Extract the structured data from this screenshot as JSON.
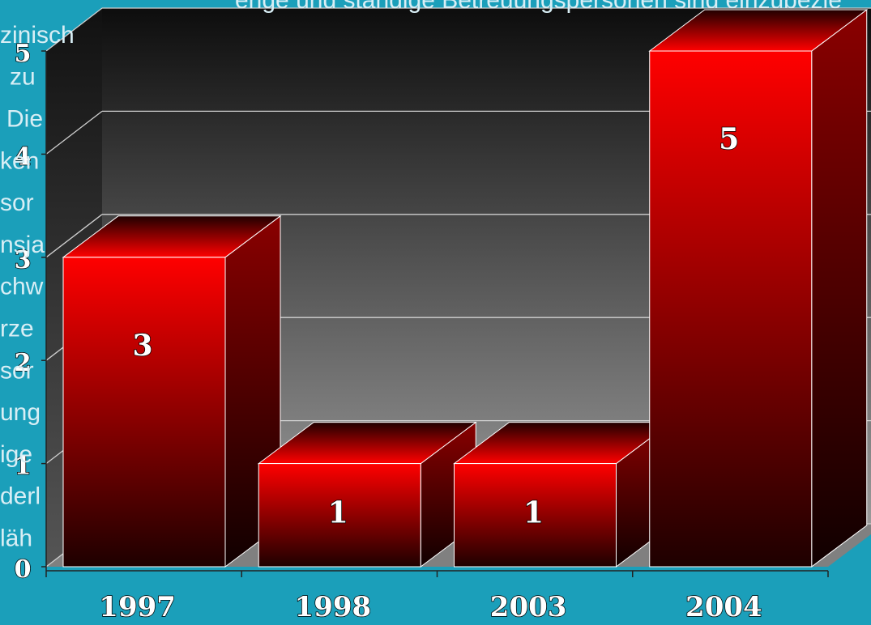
{
  "slide_text": {
    "top": "enge und ständige Betreuungspersonen sind einzubezie",
    "left": [
      "zinisch",
      "zu",
      "Die",
      "ken",
      "sor",
      "nsja",
      "chw",
      "rze",
      "sor",
      "ung",
      "ige",
      "derl",
      "läh"
    ]
  },
  "chart_data": {
    "type": "bar3d",
    "categories": [
      "1997",
      "1998",
      "2003",
      "2004"
    ],
    "values": [
      3,
      1,
      1,
      5
    ],
    "color": "#ff0000",
    "ylim": [
      0,
      5
    ],
    "yticks": [
      0,
      1,
      2,
      3,
      4,
      5
    ],
    "grid": true
  }
}
